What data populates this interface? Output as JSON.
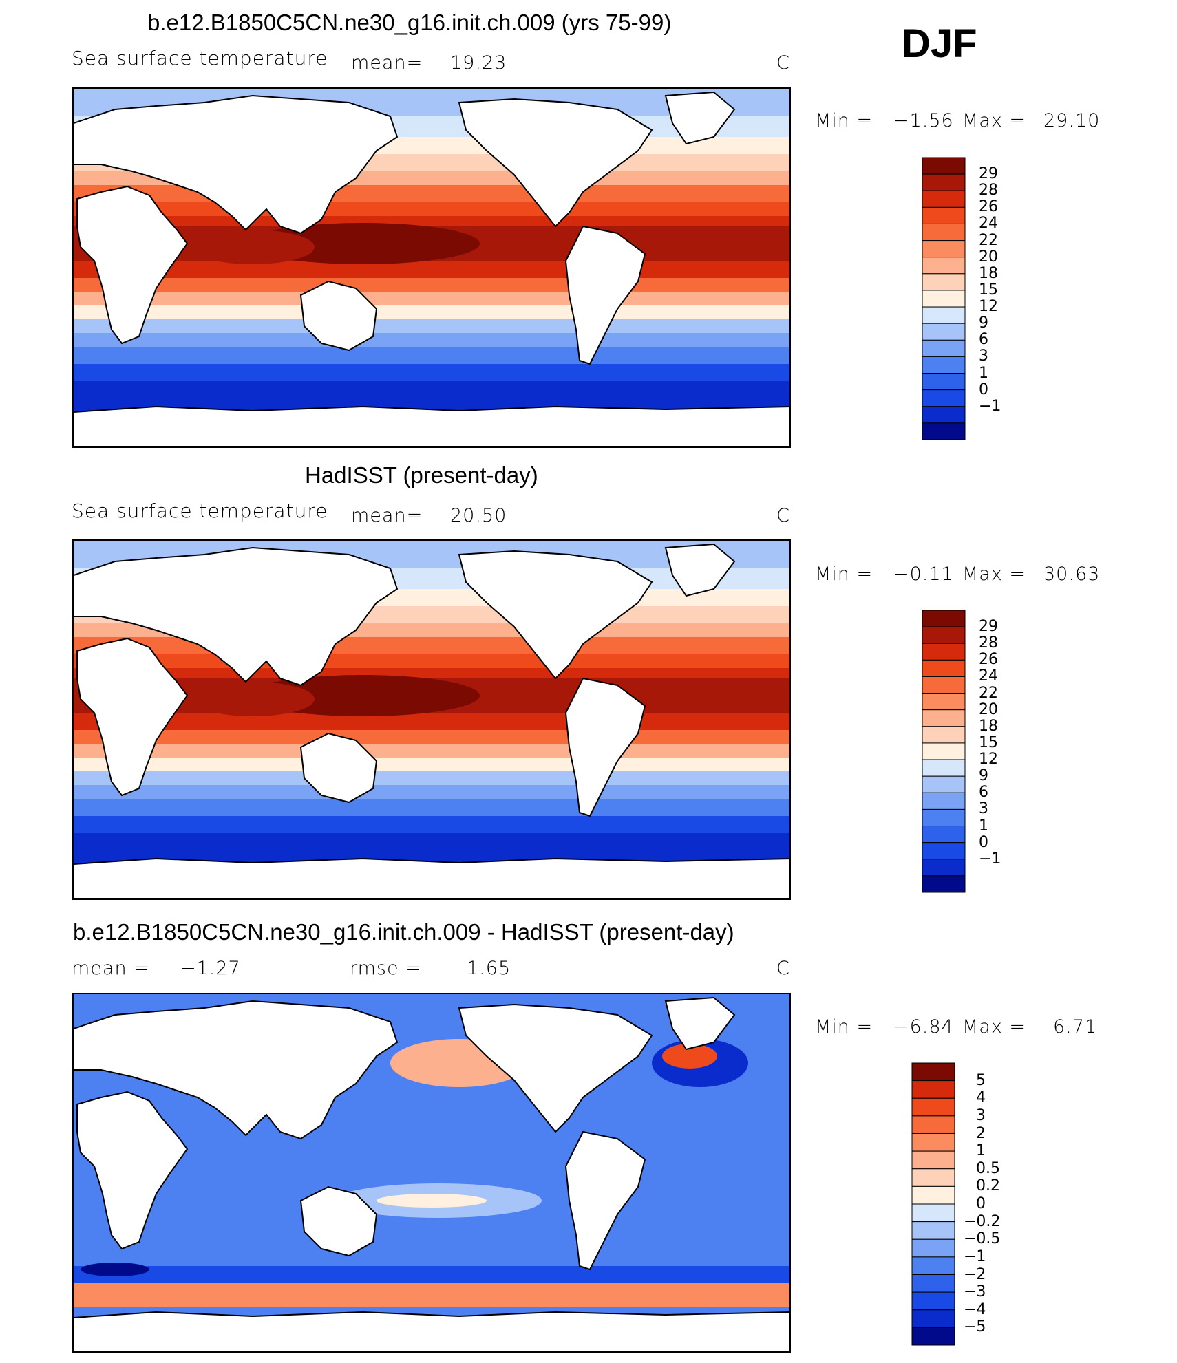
{
  "season": "DJF",
  "colors": {
    "sst_scale": [
      "#020a8c",
      "#0a2ccc",
      "#1a4ae6",
      "#2f62eb",
      "#4d80f0",
      "#7aa2f5",
      "#a7c4f8",
      "#d6e6fb",
      "#fff0e0",
      "#fdd2b8",
      "#fcb08e",
      "#fa8c60",
      "#f76a3a",
      "#ee4a1c",
      "#d52b0c",
      "#a81808",
      "#7a0a02"
    ],
    "diff_scale": [
      "#020a8c",
      "#0a2ccc",
      "#1a4ae6",
      "#2f62eb",
      "#4d80f0",
      "#7aa2f5",
      "#a7c4f8",
      "#d6e6fb",
      "#fff0e0",
      "#fdd2b8",
      "#fcb08e",
      "#fa8c60",
      "#f76a3a",
      "#ee4a1c",
      "#d52b0c",
      "#7a0a02"
    ],
    "land": "#ffffff",
    "outline": "#000000"
  },
  "panels": [
    {
      "title": "b.e12.B1850C5CN.ne30_g16.init.ch.009 (yrs 75-99)",
      "variable": "Sea surface temperature",
      "mean_label": "mean=",
      "mean_value": "19.23",
      "units": "C",
      "min_label": "Min =",
      "min_value": "−1.56",
      "max_label": "Max =",
      "max_value": "29.10",
      "colorbar_labels": [
        "29",
        "28",
        "26",
        "24",
        "22",
        "20",
        "18",
        "15",
        "12",
        "9",
        "6",
        "3",
        "1",
        "0",
        "−1"
      ]
    },
    {
      "title": "HadISST (present-day)",
      "variable": "Sea surface temperature",
      "mean_label": "mean=",
      "mean_value": "20.50",
      "units": "C",
      "min_label": "Min =",
      "min_value": "−0.11",
      "max_label": "Max =",
      "max_value": "30.63",
      "colorbar_labels": [
        "29",
        "28",
        "26",
        "24",
        "22",
        "20",
        "18",
        "15",
        "12",
        "9",
        "6",
        "3",
        "1",
        "0",
        "−1"
      ]
    },
    {
      "title": "b.e12.B1850C5CN.ne30_g16.init.ch.009 - HadISST (present-day)",
      "mean_label": "mean =",
      "mean_value": "−1.27",
      "rmse_label": "rmse =",
      "rmse_value": "1.65",
      "units": "C",
      "min_label": "Min =",
      "min_value": "−6.84",
      "max_label": "Max =",
      "max_value": "6.71",
      "colorbar_labels": [
        "5",
        "4",
        "3",
        "2",
        "1",
        "0.5",
        "0.2",
        "0",
        "−0.2",
        "−0.5",
        "−1",
        "−2",
        "−3",
        "−4",
        "−5"
      ]
    }
  ],
  "chart_data": [
    {
      "type": "heatmap",
      "title": "b.e12.B1850C5CN.ne30_g16.init.ch.009 (yrs 75-99)",
      "variable": "Sea surface temperature",
      "units": "C",
      "mean": 19.23,
      "min": -1.56,
      "max": 29.1,
      "contour_levels": [
        -1,
        0,
        1,
        3,
        6,
        9,
        12,
        15,
        18,
        20,
        22,
        24,
        26,
        28,
        29
      ]
    },
    {
      "type": "heatmap",
      "title": "HadISST (present-day)",
      "variable": "Sea surface temperature",
      "units": "C",
      "mean": 20.5,
      "min": -0.11,
      "max": 30.63,
      "contour_levels": [
        -1,
        0,
        1,
        3,
        6,
        9,
        12,
        15,
        18,
        20,
        22,
        24,
        26,
        28,
        29
      ]
    },
    {
      "type": "heatmap",
      "title": "b.e12.B1850C5CN.ne30_g16.init.ch.009 - HadISST (present-day)",
      "units": "C",
      "mean": -1.27,
      "rmse": 1.65,
      "min": -6.84,
      "max": 6.71,
      "contour_levels": [
        -5,
        -4,
        -3,
        -2,
        -1,
        -0.5,
        -0.2,
        0,
        0.2,
        0.5,
        1,
        2,
        3,
        4,
        5
      ]
    }
  ]
}
